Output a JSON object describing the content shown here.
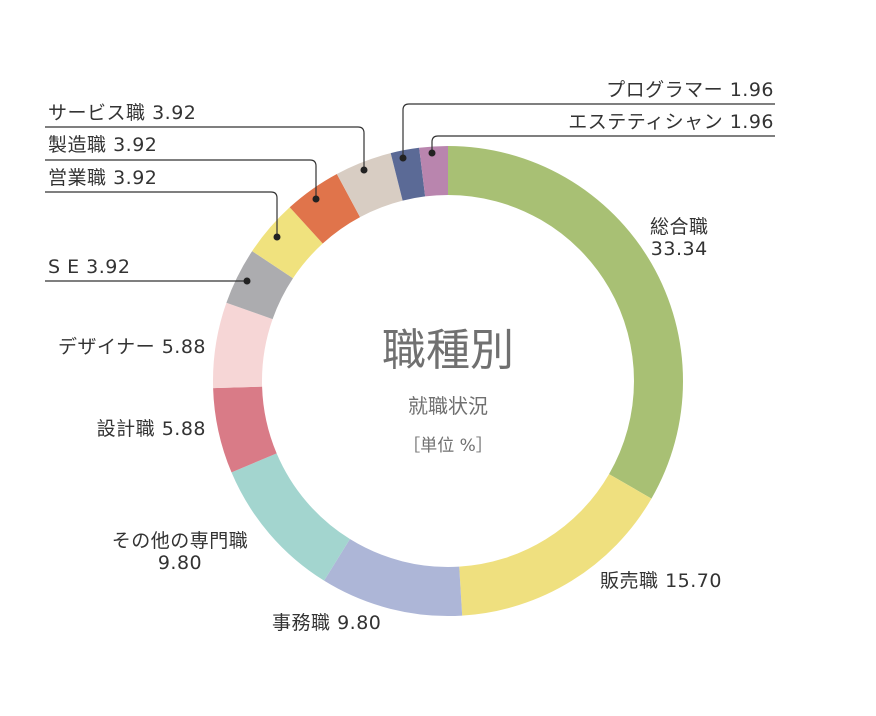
{
  "chart_data": {
    "type": "pie",
    "variant": "donut",
    "title": "職種別",
    "subtitle": "就職状況",
    "unit_label": "［単位 %］",
    "categories": [
      "総合職",
      "販売職",
      "事務職",
      "その他の専門職",
      "設計職",
      "デザイナー",
      "SE",
      "営業職",
      "製造職",
      "サービス職",
      "プログラマー",
      "エステティシャン"
    ],
    "values": [
      33.34,
      15.7,
      9.8,
      9.8,
      5.88,
      5.88,
      3.92,
      3.92,
      3.92,
      3.92,
      1.96,
      1.96
    ],
    "value_labels": [
      "33.34",
      "15.70",
      "9.80",
      "9.80",
      "5.88",
      "5.88",
      "3.92",
      "3.92",
      "3.92",
      "3.92",
      "1.96",
      "1.96"
    ],
    "display_labels": [
      "総合職",
      "販売職",
      "事務職",
      "その他の専門職",
      "設計職",
      "デザイナー",
      "S E",
      "営業職",
      "製造職",
      "サービス職",
      "プログラマー",
      "エステティシャン"
    ],
    "colors": [
      "#a8c074",
      "#efe07f",
      "#adb6d7",
      "#a3d5cf",
      "#d97b87",
      "#f6d6d6",
      "#acacaf",
      "#f0e27e",
      "#e0744b",
      "#d8cdc3",
      "#5b6a96",
      "#b985ae"
    ],
    "start": "top",
    "direction": "clockwise"
  }
}
